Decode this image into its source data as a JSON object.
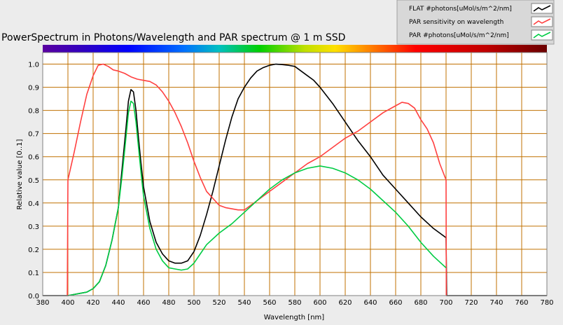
{
  "chart_data": {
    "type": "line",
    "title": "PowerSpectrum in Photons/Wavelength and PAR spectrum @ 1 m SSD",
    "xlabel": "Wavelength [nm]",
    "ylabel": "Relative value [0..1]",
    "xlim": [
      380,
      780
    ],
    "ylim": [
      0,
      1.05
    ],
    "x_ticks": [
      380,
      400,
      420,
      440,
      460,
      480,
      500,
      520,
      540,
      560,
      580,
      600,
      620,
      640,
      660,
      680,
      700,
      720,
      740,
      760,
      780
    ],
    "y_ticks": [
      0.0,
      0.1,
      0.2,
      0.3,
      0.4,
      0.5,
      0.6,
      0.7,
      0.8,
      0.9,
      1.0
    ],
    "y_tick_labels": [
      "0.0",
      "0.1",
      "0.2",
      "0.3",
      "0.4",
      "0.5",
      "0.6",
      "0.7",
      "0.8",
      "0.9",
      "1.0"
    ],
    "grid": true,
    "grid_color": "#c07000",
    "plot_background": "#ffffff",
    "spectrum_bar": true,
    "legend_position": "top-right",
    "series": [
      {
        "name": "FLAT #photons[uMol/s/m^2/nm]",
        "color": "#000000",
        "x": [
          380,
          398,
          400,
          410,
          415,
          420,
          425,
          430,
          435,
          440,
          443,
          446,
          448,
          450,
          452,
          454,
          456,
          458,
          460,
          465,
          470,
          475,
          480,
          485,
          490,
          495,
          500,
          505,
          510,
          515,
          520,
          525,
          530,
          535,
          540,
          545,
          550,
          555,
          560,
          565,
          570,
          575,
          580,
          585,
          590,
          595,
          600,
          610,
          620,
          630,
          640,
          650,
          660,
          670,
          680,
          690,
          700,
          700.5,
          780
        ],
        "y": [
          0.0,
          0.0,
          0.0,
          0.01,
          0.015,
          0.03,
          0.06,
          0.13,
          0.24,
          0.38,
          0.55,
          0.72,
          0.84,
          0.89,
          0.88,
          0.8,
          0.68,
          0.57,
          0.47,
          0.32,
          0.23,
          0.18,
          0.15,
          0.14,
          0.14,
          0.15,
          0.19,
          0.26,
          0.35,
          0.45,
          0.56,
          0.67,
          0.77,
          0.85,
          0.9,
          0.94,
          0.97,
          0.985,
          0.995,
          1.0,
          0.998,
          0.995,
          0.99,
          0.97,
          0.95,
          0.93,
          0.9,
          0.83,
          0.75,
          0.67,
          0.6,
          0.52,
          0.46,
          0.4,
          0.34,
          0.29,
          0.25,
          0.0,
          0.0
        ]
      },
      {
        "name": "PAR sensitivity on wavelength",
        "color": "#ff4040",
        "x": [
          399.5,
          400,
          405,
          410,
          415,
          420,
          424,
          428,
          432,
          436,
          440,
          445,
          450,
          455,
          460,
          465,
          470,
          475,
          480,
          485,
          490,
          495,
          500,
          505,
          510,
          515,
          520,
          525,
          530,
          535,
          540,
          545,
          550,
          560,
          570,
          580,
          590,
          600,
          610,
          620,
          630,
          640,
          650,
          660,
          665,
          670,
          675,
          680,
          685,
          690,
          695,
          700,
          700.2
        ],
        "y": [
          0.0,
          0.5,
          0.62,
          0.75,
          0.87,
          0.95,
          0.995,
          1.0,
          0.99,
          0.975,
          0.97,
          0.96,
          0.945,
          0.935,
          0.93,
          0.925,
          0.91,
          0.88,
          0.84,
          0.79,
          0.73,
          0.66,
          0.58,
          0.51,
          0.45,
          0.42,
          0.39,
          0.38,
          0.375,
          0.37,
          0.37,
          0.39,
          0.41,
          0.45,
          0.49,
          0.53,
          0.57,
          0.6,
          0.64,
          0.68,
          0.71,
          0.75,
          0.79,
          0.82,
          0.835,
          0.83,
          0.81,
          0.76,
          0.72,
          0.66,
          0.57,
          0.5,
          0.0
        ]
      },
      {
        "name": "PAR #photons[uMol/s/m^2/nm]",
        "color": "#00cc44",
        "x": [
          400,
          410,
          415,
          420,
          425,
          430,
          435,
          440,
          443,
          446,
          448,
          450,
          452,
          454,
          456,
          458,
          460,
          465,
          470,
          475,
          480,
          485,
          490,
          495,
          500,
          505,
          510,
          520,
          530,
          540,
          550,
          560,
          570,
          580,
          590,
          600,
          610,
          620,
          630,
          640,
          650,
          660,
          670,
          680,
          690,
          700
        ],
        "y": [
          0.0,
          0.01,
          0.015,
          0.03,
          0.06,
          0.13,
          0.24,
          0.38,
          0.52,
          0.68,
          0.79,
          0.84,
          0.83,
          0.75,
          0.64,
          0.53,
          0.43,
          0.29,
          0.2,
          0.15,
          0.12,
          0.115,
          0.11,
          0.115,
          0.14,
          0.18,
          0.22,
          0.27,
          0.31,
          0.36,
          0.41,
          0.46,
          0.5,
          0.53,
          0.55,
          0.56,
          0.55,
          0.53,
          0.5,
          0.46,
          0.41,
          0.36,
          0.3,
          0.23,
          0.17,
          0.12
        ]
      }
    ]
  }
}
